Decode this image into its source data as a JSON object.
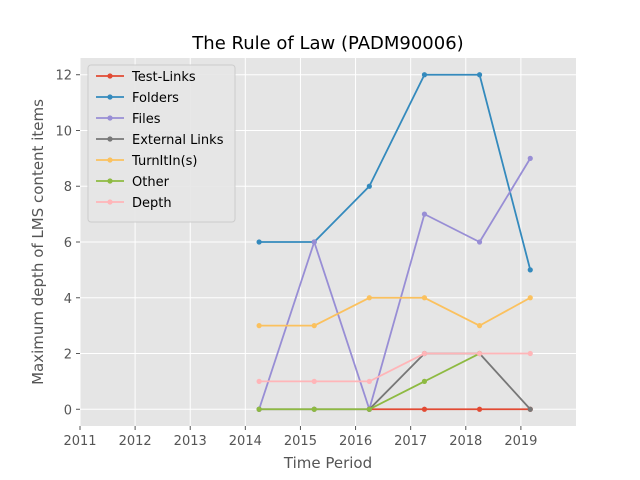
{
  "chart_data": {
    "type": "line",
    "title": "The Rule of Law (PADM90006)",
    "xlabel": "Time Period",
    "ylabel": "Maximum depth of LMS content items",
    "xlim": [
      2011,
      2020
    ],
    "ylim": [
      -0.6,
      12.6
    ],
    "xticks": [
      2011,
      2012,
      2013,
      2014,
      2015,
      2016,
      2017,
      2018,
      2019
    ],
    "yticks": [
      0,
      2,
      4,
      6,
      8,
      10,
      12
    ],
    "grid": true,
    "legend_position": "upper-left",
    "x": [
      2014.25,
      2015.25,
      2016.25,
      2017.25,
      2018.25,
      2019.17
    ],
    "series": [
      {
        "name": "Test-Links",
        "color": "#e24a33",
        "values": [
          null,
          null,
          0,
          0,
          0,
          0
        ]
      },
      {
        "name": "Folders",
        "color": "#348abd",
        "values": [
          6,
          6,
          8,
          12,
          12,
          5
        ]
      },
      {
        "name": "Files",
        "color": "#988ed5",
        "values": [
          0,
          6,
          0,
          7,
          6,
          9
        ]
      },
      {
        "name": "External Links",
        "color": "#777777",
        "values": [
          0,
          0,
          0,
          2,
          2,
          0
        ]
      },
      {
        "name": "TurnItIn(s)",
        "color": "#fbc15e",
        "values": [
          3,
          3,
          4,
          4,
          3,
          4
        ]
      },
      {
        "name": "Other",
        "color": "#8eba42",
        "values": [
          0,
          0,
          0,
          1,
          2,
          null
        ]
      },
      {
        "name": "Depth",
        "color": "#ffb5b8",
        "values": [
          1,
          1,
          1,
          2,
          2,
          2
        ]
      }
    ]
  }
}
